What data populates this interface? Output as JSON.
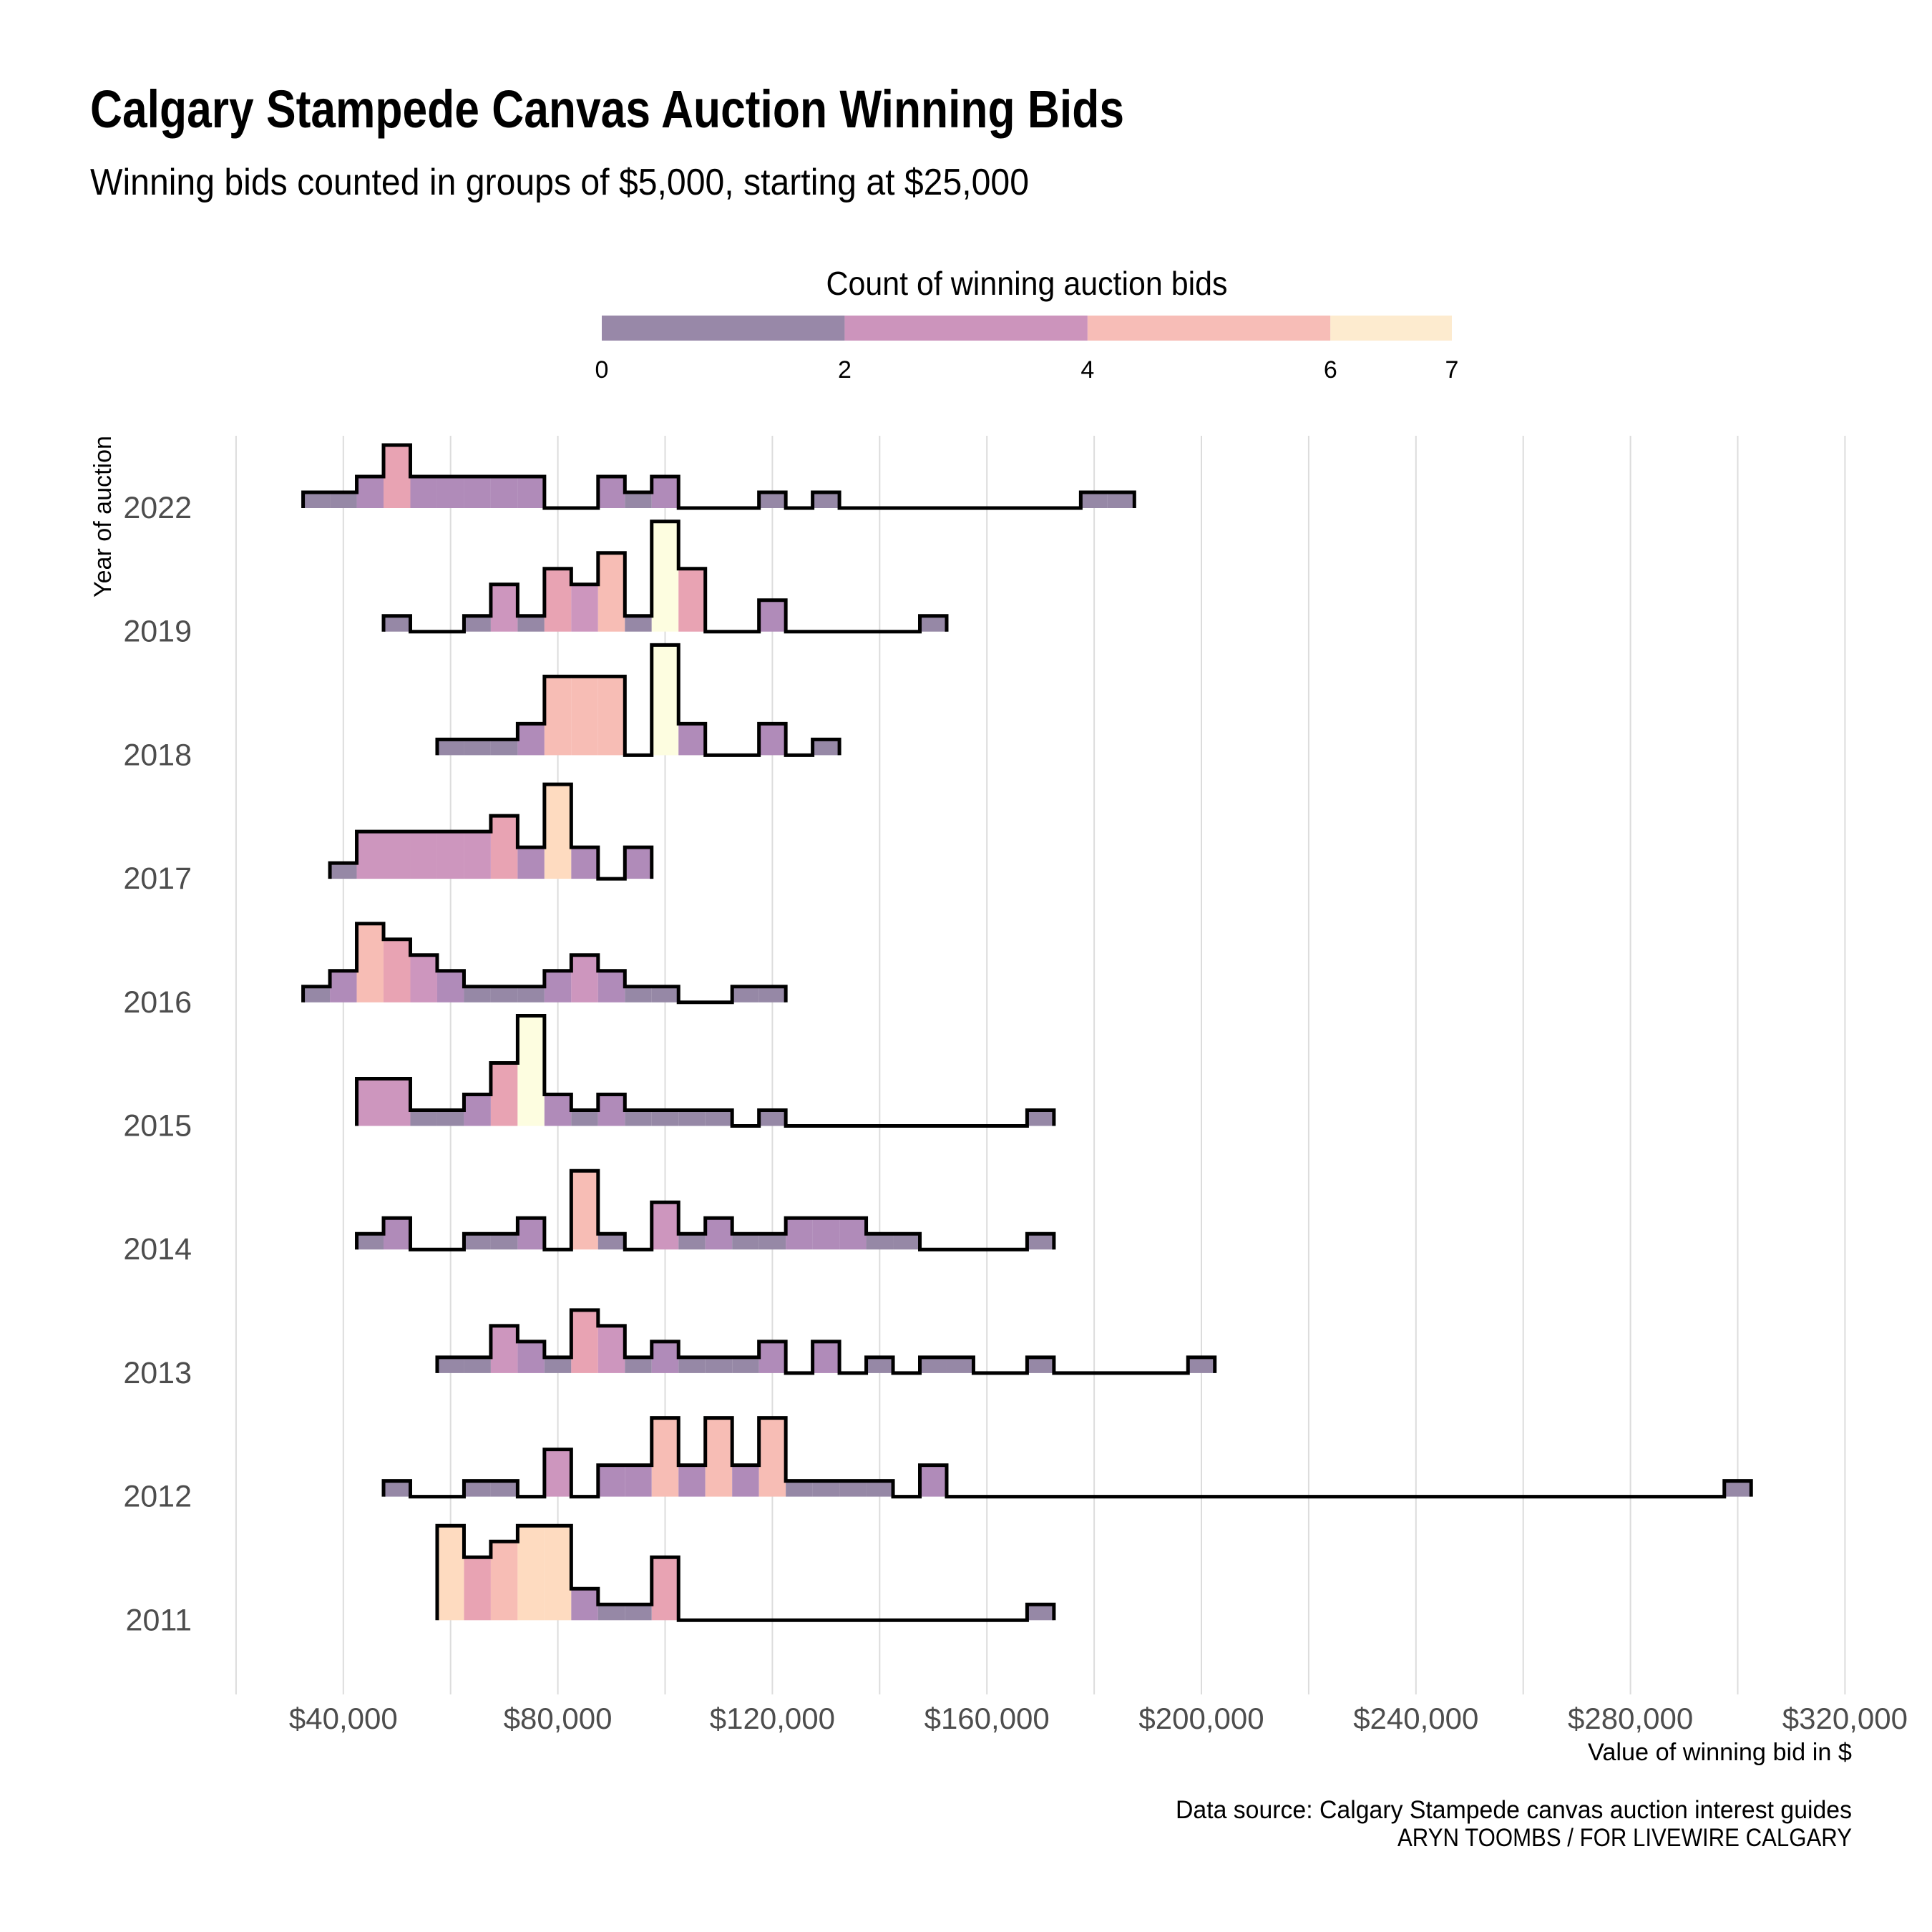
{
  "title": "Calgary Stampede Canvas Auction Winning Bids",
  "subtitle": "Winning bids counted in groups of $5,000, starting at $25,000",
  "legend": {
    "title": "Count of winning auction bids",
    "ticks": [
      "0",
      "2",
      "4",
      "6",
      "7"
    ],
    "segments": [
      {
        "from": 0,
        "to": 2,
        "color": "#9888a8"
      },
      {
        "from": 2,
        "to": 4,
        "color": "#cc94bc"
      },
      {
        "from": 4,
        "to": 6,
        "color": "#f7bdb7"
      },
      {
        "from": 6,
        "to": 7,
        "color": "#fdebcf"
      }
    ]
  },
  "chart_data": {
    "type": "histogram-ridgeline",
    "title": "Calgary Stampede Canvas Auction Winning Bids",
    "subtitle": "Winning bids counted in groups of $5,000, starting at $25,000",
    "xlabel": "Value of winning bid in $",
    "ylabel": "Year of auction",
    "bin_width": 5000,
    "xlim": [
      20000,
      320000
    ],
    "x_ticks": [
      "$40,000",
      "$80,000",
      "$120,000",
      "$160,000",
      "$200,000",
      "$240,000",
      "$280,000",
      "$320,000"
    ],
    "x_tick_values": [
      40000,
      80000,
      120000,
      160000,
      200000,
      240000,
      280000,
      320000
    ],
    "grid": true,
    "fill_by_count": {
      "1": "#9688a6",
      "2": "#b08bb9",
      "3": "#cd96be",
      "4": "#e8a3b3",
      "5": "#f7bdb5",
      "6": "#fedbc0",
      "7": "#fdfde0"
    },
    "series": [
      {
        "name": "2022",
        "first_bin_center": 35000,
        "counts": [
          1,
          1,
          2,
          4,
          2,
          2,
          2,
          2,
          2,
          0,
          0,
          2,
          1,
          2,
          0,
          0,
          0,
          1,
          0,
          1,
          0,
          0,
          0,
          0,
          0,
          0,
          0,
          0,
          0,
          1,
          1
        ]
      },
      {
        "name": "2019",
        "first_bin_center": 50000,
        "counts": [
          1,
          0,
          0,
          1,
          3,
          1,
          4,
          3,
          5,
          1,
          7,
          4,
          0,
          0,
          2,
          0,
          0,
          0,
          0,
          0,
          1
        ]
      },
      {
        "name": "2018",
        "first_bin_center": 60000,
        "counts": [
          1,
          1,
          1,
          2,
          5,
          5,
          5,
          0,
          7,
          2,
          0,
          0,
          2,
          0,
          1
        ]
      },
      {
        "name": "2017",
        "first_bin_center": 40000,
        "counts": [
          1,
          3,
          3,
          3,
          3,
          3,
          4,
          2,
          6,
          2,
          0,
          2
        ]
      },
      {
        "name": "2016",
        "first_bin_center": 35000,
        "counts": [
          1,
          2,
          5,
          4,
          3,
          2,
          1,
          1,
          1,
          2,
          3,
          2,
          1,
          1,
          0,
          0,
          1,
          1
        ]
      },
      {
        "name": "2015",
        "first_bin_center": 45000,
        "counts": [
          3,
          3,
          1,
          1,
          2,
          4,
          7,
          2,
          1,
          2,
          1,
          1,
          1,
          1,
          0,
          1,
          0,
          0,
          0,
          0,
          0,
          0,
          0,
          0,
          0,
          1
        ]
      },
      {
        "name": "2014",
        "first_bin_center": 45000,
        "counts": [
          1,
          2,
          0,
          0,
          1,
          1,
          2,
          0,
          5,
          1,
          0,
          3,
          1,
          2,
          1,
          1,
          2,
          2,
          2,
          1,
          1,
          0,
          0,
          0,
          0,
          1
        ]
      },
      {
        "name": "2013",
        "first_bin_center": 60000,
        "counts": [
          1,
          1,
          3,
          2,
          1,
          4,
          3,
          1,
          2,
          1,
          1,
          1,
          2,
          0,
          2,
          0,
          1,
          0,
          1,
          1,
          0,
          0,
          1,
          0,
          0,
          0,
          0,
          0,
          1
        ]
      },
      {
        "name": "2012",
        "first_bin_center": 50000,
        "counts": [
          1,
          0,
          0,
          1,
          1,
          0,
          3,
          0,
          2,
          2,
          5,
          2,
          5,
          2,
          5,
          1,
          1,
          1,
          1,
          0,
          2,
          0,
          0,
          0,
          0,
          0,
          0,
          0,
          0,
          0,
          0,
          0,
          0,
          0,
          0,
          0,
          0,
          0,
          0,
          0,
          0,
          0,
          0,
          0,
          0,
          0,
          0,
          0,
          0,
          0,
          1
        ]
      },
      {
        "name": "2011",
        "first_bin_center": 60000,
        "counts": [
          6,
          4,
          5,
          6,
          6,
          2,
          1,
          1,
          4,
          0,
          0,
          0,
          0,
          0,
          0,
          0,
          0,
          0,
          0,
          0,
          0,
          0,
          1
        ]
      }
    ]
  },
  "caption": {
    "source": "Data source: Calgary Stampede canvas auction interest guides",
    "credit": "ARYN TOOMBS / FOR LIVEWIRE CALGARY"
  }
}
